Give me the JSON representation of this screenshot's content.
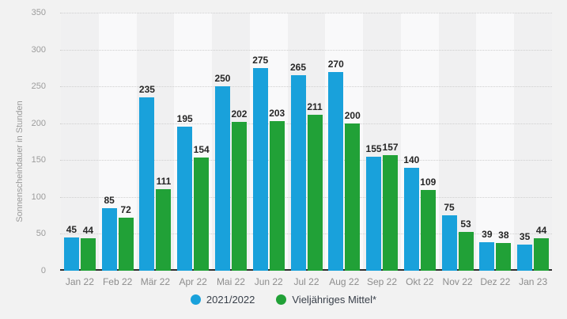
{
  "chart_data": {
    "type": "bar",
    "title": "",
    "xlabel": "",
    "ylabel": "Sonnenscheindauer in Stunden",
    "ylim": [
      0,
      350
    ],
    "ytick_step": 50,
    "grid": "horizontal-dotted",
    "legend_position": "bottom-center",
    "categories": [
      "Jan 22",
      "Feb 22",
      "Mär 22",
      "Apr 22",
      "Mai 22",
      "Jun 22",
      "Jul 22",
      "Aug 22",
      "Sep 22",
      "Okt 22",
      "Nov 22",
      "Dez 22",
      "Jan 23"
    ],
    "series": [
      {
        "name": "2021/2022",
        "color": "#19a1db",
        "values": [
          45,
          85,
          235,
          195,
          250,
          275,
          265,
          270,
          155,
          140,
          75,
          39,
          35
        ]
      },
      {
        "name": "Vieljähriges Mittel*",
        "color": "#21a137",
        "values": [
          44,
          72,
          111,
          154,
          202,
          203,
          211,
          200,
          157,
          109,
          53,
          38,
          44
        ]
      }
    ]
  }
}
